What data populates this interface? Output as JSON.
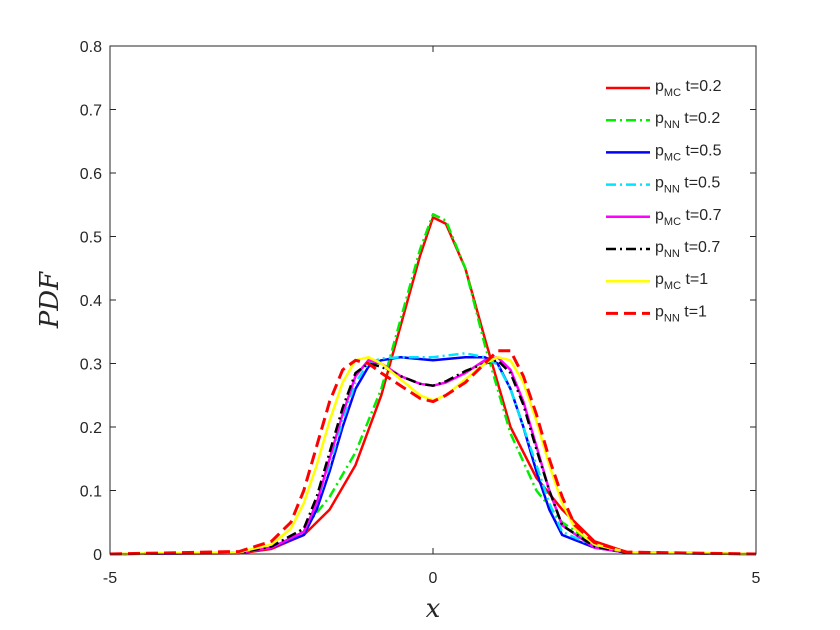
{
  "chart_data": {
    "type": "line",
    "xlabel": "x",
    "ylabel": "PDF",
    "xlim": [
      -5,
      5
    ],
    "ylim": [
      0,
      0.8
    ],
    "xticks": [
      "-5",
      "0",
      "5"
    ],
    "yticks": [
      "0",
      "0.1",
      "0.2",
      "0.3",
      "0.4",
      "0.5",
      "0.6",
      "0.7",
      "0.8"
    ],
    "grid": false,
    "legend_position": "top-right",
    "series": [
      {
        "label_main": "p",
        "label_sub": "MC",
        "label_suffix": " t=0.2",
        "color": "#ff0000",
        "style": "solid",
        "x": [
          -5,
          -3,
          -2.5,
          -2,
          -1.6,
          -1.2,
          -0.8,
          -0.5,
          -0.2,
          0,
          0.2,
          0.5,
          0.8,
          1.2,
          1.6,
          2,
          2.5,
          3,
          5
        ],
        "y": [
          0,
          0.001,
          0.008,
          0.03,
          0.07,
          0.14,
          0.25,
          0.36,
          0.47,
          0.53,
          0.52,
          0.45,
          0.34,
          0.2,
          0.12,
          0.07,
          0.02,
          0.003,
          0
        ]
      },
      {
        "label_main": "p",
        "label_sub": "NN",
        "label_suffix": " t=0.2",
        "color": "#00ee00",
        "style": "dashdot",
        "x": [
          -5,
          -3,
          -2.5,
          -2,
          -1.6,
          -1.2,
          -0.8,
          -0.5,
          -0.2,
          0,
          0.2,
          0.5,
          0.8,
          1.2,
          1.6,
          2,
          2.5,
          3,
          5
        ],
        "y": [
          0,
          0.002,
          0.01,
          0.04,
          0.09,
          0.16,
          0.26,
          0.37,
          0.48,
          0.535,
          0.525,
          0.45,
          0.33,
          0.19,
          0.1,
          0.05,
          0.015,
          0.002,
          0
        ]
      },
      {
        "label_main": "p",
        "label_sub": "MC",
        "label_suffix": " t=0.5",
        "color": "#0000ff",
        "style": "solid",
        "x": [
          -5,
          -3,
          -2.5,
          -2,
          -1.8,
          -1.6,
          -1.4,
          -1.2,
          -1,
          -0.8,
          -0.5,
          0,
          0.5,
          0.8,
          1,
          1.2,
          1.4,
          1.6,
          1.8,
          2,
          2.5,
          3,
          5
        ],
        "y": [
          0,
          0.002,
          0.01,
          0.03,
          0.07,
          0.13,
          0.2,
          0.26,
          0.295,
          0.305,
          0.31,
          0.305,
          0.31,
          0.31,
          0.3,
          0.26,
          0.2,
          0.13,
          0.07,
          0.03,
          0.01,
          0.002,
          0
        ]
      },
      {
        "label_main": "p",
        "label_sub": "NN",
        "label_suffix": " t=0.5",
        "color": "#00e5ff",
        "style": "dashdot",
        "x": [
          -5,
          -3,
          -2.5,
          -2,
          -1.8,
          -1.6,
          -1.4,
          -1.2,
          -1,
          -0.8,
          -0.5,
          0,
          0.5,
          0.8,
          1,
          1.2,
          1.4,
          1.6,
          1.8,
          2,
          2.5,
          3,
          5
        ],
        "y": [
          0,
          0.002,
          0.012,
          0.035,
          0.08,
          0.14,
          0.21,
          0.27,
          0.3,
          0.308,
          0.31,
          0.31,
          0.316,
          0.31,
          0.298,
          0.26,
          0.2,
          0.14,
          0.08,
          0.035,
          0.012,
          0.002,
          0
        ]
      },
      {
        "label_main": "p",
        "label_sub": "MC",
        "label_suffix": " t=0.7",
        "color": "#ff00ff",
        "style": "solid",
        "x": [
          -5,
          -3,
          -2.5,
          -2,
          -1.8,
          -1.6,
          -1.4,
          -1.2,
          -1,
          -0.8,
          -0.5,
          -0.2,
          0,
          0.2,
          0.5,
          0.8,
          1,
          1.2,
          1.4,
          1.6,
          1.8,
          2,
          2.5,
          3,
          5
        ],
        "y": [
          0,
          0.002,
          0.01,
          0.035,
          0.08,
          0.15,
          0.22,
          0.28,
          0.305,
          0.3,
          0.28,
          0.268,
          0.265,
          0.27,
          0.285,
          0.305,
          0.31,
          0.29,
          0.24,
          0.17,
          0.1,
          0.045,
          0.01,
          0.002,
          0
        ]
      },
      {
        "label_main": "p",
        "label_sub": "NN",
        "label_suffix": " t=0.7",
        "color": "#000000",
        "style": "dashdot",
        "x": [
          -5,
          -3,
          -2.5,
          -2,
          -1.8,
          -1.6,
          -1.4,
          -1.2,
          -1,
          -0.8,
          -0.5,
          -0.2,
          0,
          0.2,
          0.5,
          0.8,
          1,
          1.2,
          1.4,
          1.6,
          1.8,
          2,
          2.5,
          3,
          5
        ],
        "y": [
          0,
          0.002,
          0.012,
          0.04,
          0.09,
          0.16,
          0.23,
          0.285,
          0.3,
          0.295,
          0.28,
          0.268,
          0.265,
          0.272,
          0.288,
          0.3,
          0.305,
          0.285,
          0.235,
          0.165,
          0.1,
          0.045,
          0.012,
          0.002,
          0
        ]
      },
      {
        "label_main": "p",
        "label_sub": "MC",
        "label_suffix": " t=1",
        "color": "#ffff00",
        "style": "solid",
        "x": [
          -5,
          -3,
          -2.5,
          -2.2,
          -2,
          -1.8,
          -1.6,
          -1.4,
          -1.2,
          -1,
          -0.8,
          -0.5,
          -0.2,
          0,
          0.2,
          0.5,
          0.8,
          1,
          1.2,
          1.4,
          1.6,
          1.8,
          2,
          2.2,
          2.5,
          3,
          5
        ],
        "y": [
          0,
          0.003,
          0.015,
          0.04,
          0.08,
          0.14,
          0.21,
          0.27,
          0.305,
          0.31,
          0.3,
          0.275,
          0.25,
          0.242,
          0.25,
          0.275,
          0.3,
          0.31,
          0.305,
          0.27,
          0.21,
          0.14,
          0.08,
          0.04,
          0.015,
          0.003,
          0
        ]
      },
      {
        "label_main": "p",
        "label_sub": "NN",
        "label_suffix": " t=1",
        "color": "#ff0000",
        "style": "dashed",
        "x": [
          -5,
          -3,
          -2.5,
          -2.2,
          -2,
          -1.8,
          -1.6,
          -1.4,
          -1.2,
          -1,
          -0.8,
          -0.5,
          -0.2,
          0,
          0.2,
          0.5,
          0.8,
          1,
          1.2,
          1.4,
          1.6,
          1.8,
          2,
          2.2,
          2.5,
          3,
          5
        ],
        "y": [
          0,
          0.004,
          0.02,
          0.05,
          0.1,
          0.17,
          0.24,
          0.29,
          0.305,
          0.3,
          0.285,
          0.265,
          0.245,
          0.24,
          0.25,
          0.27,
          0.3,
          0.32,
          0.32,
          0.28,
          0.22,
          0.15,
          0.09,
          0.045,
          0.018,
          0.003,
          0
        ]
      }
    ]
  }
}
